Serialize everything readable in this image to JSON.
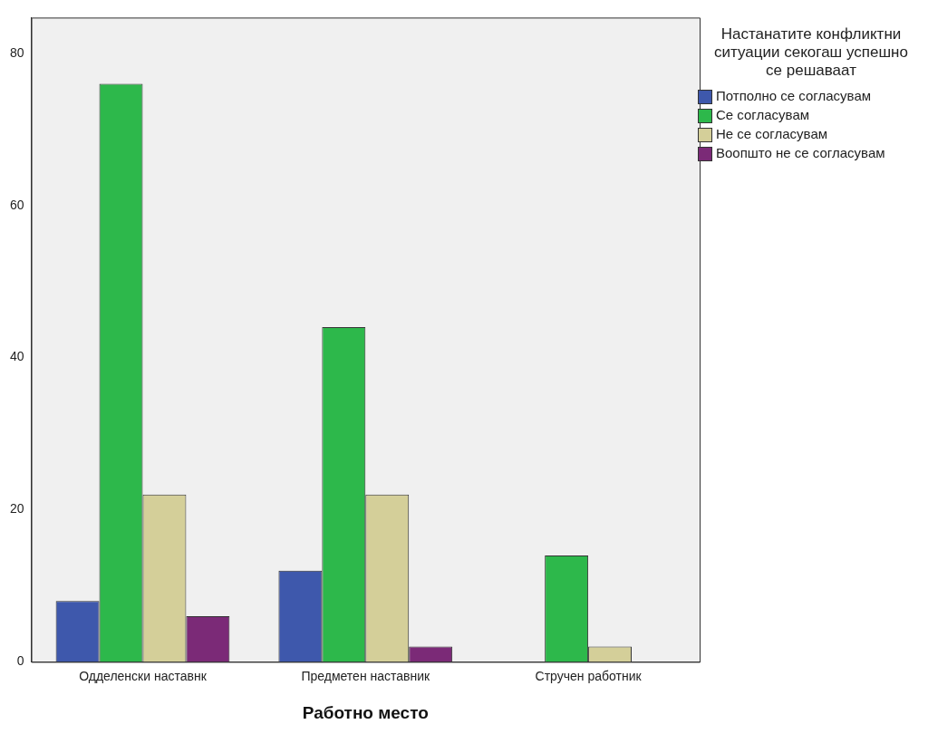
{
  "chart_data": {
    "type": "bar",
    "xlabel": "Работно место",
    "legend_title": "Настанатите конфликтни ситуации секогаш успешно се решаваат",
    "legend": "right",
    "grid": false,
    "categories": [
      "Одделенски наставнк",
      "Предметен наставник",
      "Стручен работник"
    ],
    "ylim": [
      0,
      84.7
    ],
    "yticks": [
      0,
      20,
      40,
      60,
      80
    ],
    "series": [
      {
        "name": "Потполно се согласувам",
        "color": "#3e58ac",
        "values": [
          8,
          12,
          0
        ]
      },
      {
        "name": "Се согласувам",
        "color": "#2db84b",
        "values": [
          76,
          44,
          14
        ]
      },
      {
        "name": "Не се согласувам",
        "color": "#d4cf99",
        "values": [
          22,
          22,
          2
        ]
      },
      {
        "name": "Воопшто не се согласувам",
        "color": "#7b2a77",
        "values": [
          6,
          2,
          0
        ]
      }
    ]
  }
}
